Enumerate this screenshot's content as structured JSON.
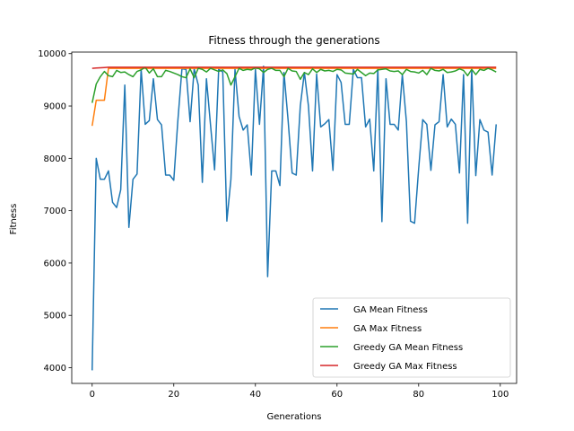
{
  "chart_data": {
    "type": "line",
    "title": "Fitness through the generations",
    "xlabel": "Generations",
    "ylabel": "Fitness",
    "xlim": [
      -5,
      104
    ],
    "ylim": [
      3700,
      10030
    ],
    "xticks": [
      0,
      20,
      40,
      60,
      80,
      100
    ],
    "yticks": [
      4000,
      5000,
      6000,
      7000,
      8000,
      9000,
      10000
    ],
    "grid": false,
    "legend_position": "lower-right",
    "series": [
      {
        "name": "GA Mean Fitness",
        "color": "#1f77b4",
        "x": [
          0,
          1,
          2,
          3,
          4,
          5,
          6,
          7,
          8,
          9,
          10,
          11,
          12,
          13,
          14,
          15,
          16,
          17,
          18,
          19,
          20,
          21,
          22,
          23,
          24,
          25,
          26,
          27,
          28,
          29,
          30,
          31,
          32,
          33,
          34,
          35,
          36,
          37,
          38,
          39,
          40,
          41,
          42,
          43,
          44,
          45,
          46,
          47,
          48,
          49,
          50,
          51,
          52,
          53,
          54,
          55,
          56,
          57,
          58,
          59,
          60,
          61,
          62,
          63,
          64,
          65,
          66,
          67,
          68,
          69,
          70,
          71,
          72,
          73,
          74,
          75,
          76,
          77,
          78,
          79,
          80,
          81,
          82,
          83,
          84,
          85,
          86,
          87,
          88,
          89,
          90,
          91,
          92,
          93,
          94,
          95,
          96,
          97,
          98,
          99
        ],
        "y": [
          3950,
          8000,
          7600,
          7600,
          7760,
          7160,
          7060,
          7400,
          9400,
          6680,
          7600,
          7700,
          9700,
          8650,
          8720,
          9520,
          8740,
          8640,
          7680,
          7680,
          7580,
          8720,
          9710,
          9700,
          8700,
          9710,
          9400,
          7540,
          9520,
          8640,
          7780,
          9700,
          9650,
          6800,
          7600,
          9700,
          8800,
          8540,
          8640,
          7680,
          9700,
          8650,
          9760,
          5740,
          7760,
          7760,
          7480,
          9640,
          8740,
          7720,
          7680,
          9000,
          9640,
          9000,
          7760,
          9610,
          8600,
          8660,
          8740,
          7770,
          9600,
          9450,
          8650,
          8650,
          9700,
          9540,
          9540,
          8600,
          8750,
          7760,
          9720,
          6790,
          9520,
          8650,
          8650,
          8540,
          9600,
          8700,
          6800,
          6760,
          7800,
          8740,
          8650,
          7770,
          8640,
          8700,
          9600,
          8600,
          8750,
          8650,
          7720,
          9600,
          6760,
          9700,
          7670,
          8740,
          8540,
          8500,
          7680,
          8650
        ]
      },
      {
        "name": "GA Max Fitness",
        "color": "#ff7f0e",
        "x": [
          0,
          1,
          2,
          3,
          4,
          5,
          6,
          7,
          8,
          9,
          10,
          11,
          12,
          13,
          14,
          15,
          16,
          17,
          18,
          19,
          20,
          21,
          22,
          23,
          24,
          25,
          26,
          27,
          28,
          29,
          30,
          31,
          32,
          33,
          34,
          35,
          36,
          37,
          38,
          39,
          40,
          41,
          42,
          43,
          44,
          45,
          46,
          47,
          48,
          49,
          50,
          51,
          52,
          53,
          54,
          55,
          56,
          57,
          58,
          59,
          60,
          61,
          62,
          63,
          64,
          65,
          66,
          67,
          68,
          69,
          70,
          71,
          72,
          73,
          74,
          75,
          76,
          77,
          78,
          79,
          80,
          81,
          82,
          83,
          84,
          85,
          86,
          87,
          88,
          89,
          90,
          91,
          92,
          93,
          94,
          95,
          96,
          97,
          98,
          99
        ],
        "y": [
          8620,
          9110,
          9110,
          9110,
          9720,
          9720,
          9720,
          9720,
          9720,
          9720,
          9720,
          9720,
          9720,
          9720,
          9720,
          9720,
          9720,
          9720,
          9720,
          9720,
          9720,
          9720,
          9720,
          9720,
          9720,
          9720,
          9720,
          9720,
          9720,
          9720,
          9720,
          9720,
          9720,
          9720,
          9720,
          9720,
          9720,
          9720,
          9720,
          9720,
          9720,
          9720,
          9720,
          9720,
          9720,
          9720,
          9720,
          9720,
          9720,
          9720,
          9720,
          9720,
          9720,
          9720,
          9720,
          9720,
          9720,
          9720,
          9720,
          9720,
          9720,
          9720,
          9720,
          9720,
          9720,
          9720,
          9720,
          9720,
          9720,
          9720,
          9720,
          9720,
          9720,
          9720,
          9720,
          9720,
          9720,
          9720,
          9720,
          9720,
          9720,
          9720,
          9720,
          9720,
          9720,
          9720,
          9720,
          9720,
          9720,
          9720,
          9720,
          9720,
          9720,
          9720,
          9720,
          9720,
          9720,
          9720,
          9720,
          9720
        ]
      },
      {
        "name": "Greedy GA Mean Fitness",
        "color": "#2ca02c",
        "x": [
          0,
          1,
          2,
          3,
          4,
          5,
          6,
          7,
          8,
          9,
          10,
          11,
          12,
          13,
          14,
          15,
          16,
          17,
          18,
          19,
          20,
          21,
          22,
          23,
          24,
          25,
          26,
          27,
          28,
          29,
          30,
          31,
          32,
          33,
          34,
          35,
          36,
          37,
          38,
          39,
          40,
          41,
          42,
          43,
          44,
          45,
          46,
          47,
          48,
          49,
          50,
          51,
          52,
          53,
          54,
          55,
          56,
          57,
          58,
          59,
          60,
          61,
          62,
          63,
          64,
          65,
          66,
          67,
          68,
          69,
          70,
          71,
          72,
          73,
          74,
          75,
          76,
          77,
          78,
          79,
          80,
          81,
          82,
          83,
          84,
          85,
          86,
          87,
          88,
          89,
          90,
          91,
          92,
          93,
          94,
          95,
          96,
          97,
          98,
          99
        ],
        "y": [
          9060,
          9420,
          9560,
          9660,
          9580,
          9560,
          9680,
          9640,
          9650,
          9600,
          9560,
          9660,
          9690,
          9740,
          9630,
          9710,
          9560,
          9560,
          9680,
          9660,
          9630,
          9600,
          9560,
          9540,
          9710,
          9540,
          9720,
          9700,
          9650,
          9720,
          9690,
          9660,
          9690,
          9620,
          9400,
          9560,
          9720,
          9680,
          9700,
          9690,
          9730,
          9710,
          9640,
          9700,
          9720,
          9680,
          9680,
          9560,
          9720,
          9670,
          9660,
          9510,
          9640,
          9600,
          9710,
          9640,
          9700,
          9670,
          9680,
          9660,
          9700,
          9690,
          9630,
          9620,
          9610,
          9700,
          9640,
          9580,
          9630,
          9620,
          9690,
          9700,
          9710,
          9670,
          9660,
          9670,
          9600,
          9700,
          9660,
          9650,
          9630,
          9680,
          9600,
          9720,
          9680,
          9670,
          9700,
          9640,
          9650,
          9670,
          9710,
          9680,
          9580,
          9700,
          9600,
          9700,
          9680,
          9720,
          9690,
          9650
        ]
      },
      {
        "name": "Greedy GA Max Fitness",
        "color": "#d62728",
        "x": [
          0,
          1,
          2,
          3,
          4,
          5,
          6,
          7,
          8,
          9,
          10,
          11,
          12,
          13,
          14,
          15,
          16,
          17,
          18,
          19,
          20,
          21,
          22,
          23,
          24,
          25,
          26,
          27,
          28,
          29,
          30,
          31,
          32,
          33,
          34,
          35,
          36,
          37,
          38,
          39,
          40,
          41,
          42,
          43,
          44,
          45,
          46,
          47,
          48,
          49,
          50,
          51,
          52,
          53,
          54,
          55,
          56,
          57,
          58,
          59,
          60,
          61,
          62,
          63,
          64,
          65,
          66,
          67,
          68,
          69,
          70,
          71,
          72,
          73,
          74,
          75,
          76,
          77,
          78,
          79,
          80,
          81,
          82,
          83,
          84,
          85,
          86,
          87,
          88,
          89,
          90,
          91,
          92,
          93,
          94,
          95,
          96,
          97,
          98,
          99
        ],
        "y": [
          9720,
          9725,
          9730,
          9735,
          9740,
          9740,
          9740,
          9740,
          9740,
          9740,
          9740,
          9740,
          9740,
          9740,
          9740,
          9740,
          9740,
          9740,
          9740,
          9740,
          9740,
          9740,
          9740,
          9740,
          9740,
          9740,
          9740,
          9740,
          9740,
          9740,
          9740,
          9740,
          9740,
          9740,
          9740,
          9740,
          9740,
          9740,
          9740,
          9740,
          9740,
          9740,
          9740,
          9740,
          9740,
          9740,
          9740,
          9740,
          9740,
          9740,
          9740,
          9740,
          9740,
          9740,
          9740,
          9740,
          9740,
          9740,
          9740,
          9740,
          9740,
          9740,
          9740,
          9740,
          9740,
          9740,
          9740,
          9740,
          9740,
          9740,
          9740,
          9740,
          9740,
          9740,
          9740,
          9740,
          9740,
          9740,
          9740,
          9740,
          9740,
          9740,
          9740,
          9740,
          9740,
          9740,
          9740,
          9740,
          9740,
          9740,
          9740,
          9740,
          9740,
          9740,
          9740,
          9740,
          9740,
          9740,
          9740,
          9740
        ]
      }
    ]
  }
}
